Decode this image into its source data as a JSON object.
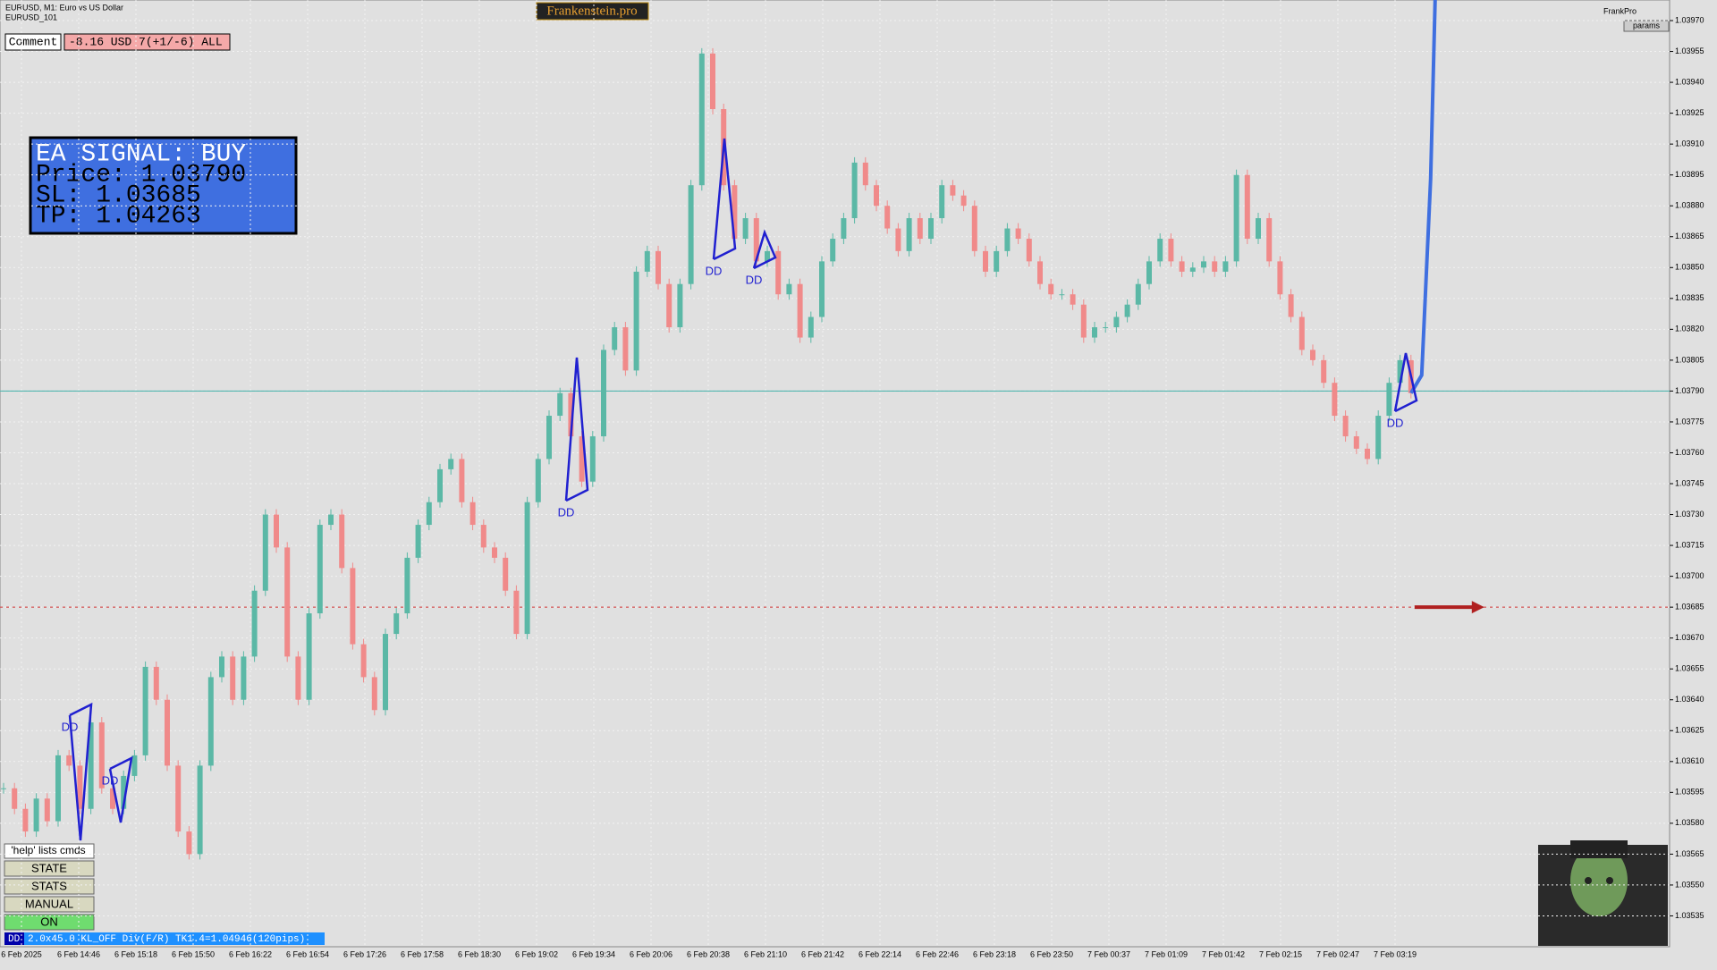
{
  "window": {
    "symbol": "EURUSD, M1:  Euro vs US Dollar",
    "template": "EURUSD_101",
    "brand": "Frankenstein.pro",
    "comment_button": "Comment",
    "comment_text": "-8.16 USD 7(+1/-6) ALL",
    "user": "FrankPro",
    "params": "params"
  },
  "signal": {
    "lines": [
      "EA SIGNAL: BUY",
      "Price: 1.03790",
      "SL:     1.03685",
      "TP:     1.04263"
    ]
  },
  "panel": {
    "help": "'help' lists cmds",
    "buttons": [
      "STATE",
      "STATS",
      "MANUAL",
      "ON"
    ]
  },
  "status": {
    "tag": "DD",
    "text": "2.0x45.0 KL_OFF Div(F/R) TK1.4=1.04946(120pips)"
  },
  "chart": {
    "type": "candlestick",
    "annotations": [
      "DD",
      "DD",
      "DD",
      "DD",
      "DD",
      "DD"
    ],
    "time_labels": [
      "6 Feb 2025",
      "6 Feb 14:46",
      "6 Feb 15:18",
      "6 Feb 15:50",
      "6 Feb 16:22",
      "6 Feb 16:54",
      "6 Feb 17:26",
      "6 Feb 17:58",
      "6 Feb 18:30",
      "6 Feb 19:02",
      "6 Feb 19:34",
      "6 Feb 20:06",
      "6 Feb 20:38",
      "6 Feb 21:10",
      "6 Feb 21:42",
      "6 Feb 22:14",
      "6 Feb 22:46",
      "6 Feb 23:18",
      "6 Feb 23:50",
      "7 Feb 00:37",
      "7 Feb 01:09",
      "7 Feb 01:42",
      "7 Feb 02:15",
      "7 Feb 02:47",
      "7 Feb 03:19"
    ],
    "values": [
      1.03597,
      1.03587,
      1.03576,
      1.03592,
      1.03581,
      1.03613,
      1.03608,
      1.03587,
      1.03629,
      1.03597,
      1.03587,
      1.03603,
      1.03613,
      1.03656,
      1.0364,
      1.03608,
      1.03576,
      1.03565,
      1.03608,
      1.03651,
      1.03661,
      1.0364,
      1.03661,
      1.03693,
      1.0373,
      1.03714,
      1.03661,
      1.0364,
      1.03682,
      1.03725,
      1.0373,
      1.03704,
      1.03667,
      1.03651,
      1.03635,
      1.03672,
      1.03682,
      1.03709,
      1.03725,
      1.03736,
      1.03752,
      1.03757,
      1.03736,
      1.03725,
      1.03714,
      1.03709,
      1.03693,
      1.03672,
      1.03736,
      1.03757,
      1.03778,
      1.03789,
      1.03768,
      1.03746,
      1.03768,
      1.0381,
      1.03821,
      1.038,
      1.03848,
      1.03858,
      1.03842,
      1.03821,
      1.03842,
      1.0389,
      1.03954,
      1.03927,
      1.0389,
      1.03864,
      1.03874,
      1.03853,
      1.03858,
      1.03837,
      1.03842,
      1.03816,
      1.03826,
      1.03853,
      1.03864,
      1.03874,
      1.03901,
      1.0389,
      1.0388,
      1.03869,
      1.03858,
      1.03874,
      1.03864,
      1.03874,
      1.0389,
      1.03885,
      1.0388,
      1.03858,
      1.03848,
      1.03858,
      1.03869,
      1.03864,
      1.03853,
      1.03842,
      1.03837,
      1.03837,
      1.03832,
      1.03816,
      1.03821,
      1.03821,
      1.03826,
      1.03832,
      1.03842,
      1.03853,
      1.03864,
      1.03853,
      1.03848,
      1.0385,
      1.03853,
      1.03848,
      1.03853,
      1.03895,
      1.03864,
      1.03874,
      1.03853,
      1.03837,
      1.03826,
      1.0381,
      1.03805,
      1.03794,
      1.03778,
      1.03768,
      1.03762,
      1.03757,
      1.03778,
      1.03794,
      1.03805,
      1.03789
    ],
    "up_color": "#5bb8a6",
    "down_color": "#f08a8a",
    "ylim": [
      1.0352,
      1.0398
    ],
    "yticks": [
      1.03535,
      {
        "value": 1.0355,
        "label": "1.03550"
      },
      1.03565,
      {
        "value": 1.0358,
        "label": "1.03580"
      },
      1.03595,
      {
        "value": 1.0361,
        "label": "1.03610"
      },
      1.03625,
      {
        "value": 1.0364,
        "label": "1.03640"
      },
      1.03655,
      {
        "value": 1.0367,
        "label": "1.03670"
      },
      1.03685,
      {
        "value": 1.037,
        "label": "1.03700"
      },
      1.03715,
      {
        "value": 1.0373,
        "label": "1.03730"
      },
      1.03745,
      {
        "value": 1.0376,
        "label": "1.03760"
      },
      1.03775,
      {
        "value": 1.0379,
        "label": "1.03790"
      },
      1.03805,
      {
        "value": 1.0382,
        "label": "1.03820"
      },
      1.03835,
      {
        "value": 1.0385,
        "label": "1.03850"
      },
      1.03865,
      {
        "value": 1.0388,
        "label": "1.03880"
      },
      1.03895,
      {
        "value": 1.0391,
        "label": "1.03910"
      },
      1.03925,
      {
        "value": 1.0394,
        "label": "1.03940"
      },
      1.03955,
      {
        "value": 1.0397,
        "label": "1.03970"
      }
    ],
    "bid_line": 1.0379,
    "sl_line": 1.03685,
    "grid": true
  }
}
